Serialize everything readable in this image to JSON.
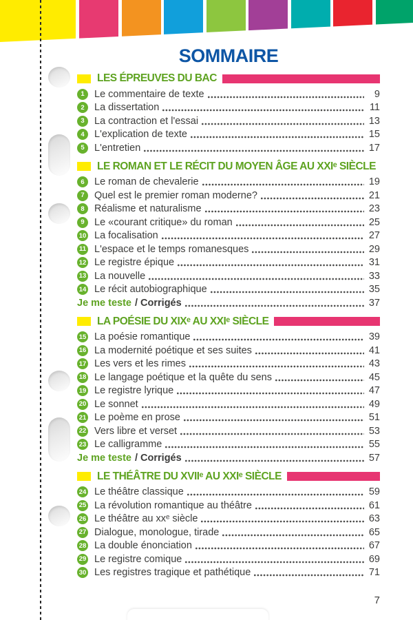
{
  "title": "SOMMAIRE",
  "folio": "7",
  "colors": {
    "title_blue": "#0e56a5",
    "heading_green": "#5ea321",
    "badge_green": "#68b22d",
    "bar_pink": "#e73571",
    "square_yellow": "#ffec00",
    "text": "#3c3c3b"
  },
  "stripe_colors": [
    "#ffec00",
    "#e73a71",
    "#f39320",
    "#119fdb",
    "#8dc63f",
    "#a23f97",
    "#00adae",
    "#e9242f",
    "#00a36a"
  ],
  "sections": [
    {
      "title": "LES ÉPREUVES DU BAC",
      "has_bar": true,
      "items": [
        {
          "num": "1",
          "label": "Le commentaire de texte",
          "page": "9"
        },
        {
          "num": "2",
          "label": "La dissertation",
          "page": "11"
        },
        {
          "num": "3",
          "label": "La contraction et l'essai",
          "page": "13"
        },
        {
          "num": "4",
          "label": "L'explication de texte",
          "page": "15"
        },
        {
          "num": "5",
          "label": "L'entretien",
          "page": "17"
        }
      ],
      "footer": null
    },
    {
      "title": "LE ROMAN ET LE RÉCIT DU MOYEN ÂGE AU XXIᵉ SIÈCLE",
      "has_bar": false,
      "items": [
        {
          "num": "6",
          "label": "Le roman de chevalerie",
          "page": "19"
        },
        {
          "num": "7",
          "label": "Quel est le premier roman moderne?",
          "page": "21"
        },
        {
          "num": "8",
          "label": "Réalisme et naturalisme",
          "page": "23"
        },
        {
          "num": "9",
          "label": "Le «courant critique» du roman",
          "page": "25"
        },
        {
          "num": "10",
          "label": "La focalisation",
          "page": "27"
        },
        {
          "num": "11",
          "label": "L'espace et le temps romanesques",
          "page": "29"
        },
        {
          "num": "12",
          "label": "Le registre épique",
          "page": "31"
        },
        {
          "num": "13",
          "label": "La nouvelle",
          "page": "33"
        },
        {
          "num": "14",
          "label": "Le récit autobiographique",
          "page": "35"
        }
      ],
      "footer": {
        "green_label": "Je me teste",
        "dark_label": "/ Corrigés",
        "page": "37"
      }
    },
    {
      "title": "LA POÉSIE DU XIXᵉ AU XXIᵉ SIÈCLE",
      "has_bar": true,
      "items": [
        {
          "num": "15",
          "label": "La poésie romantique",
          "page": "39"
        },
        {
          "num": "16",
          "label": "La modernité poétique et ses suites",
          "page": "41"
        },
        {
          "num": "17",
          "label": "Les vers et les rimes",
          "page": "43"
        },
        {
          "num": "18",
          "label": "Le langage poétique et la quête du sens",
          "page": "45"
        },
        {
          "num": "19",
          "label": "Le registre lyrique",
          "page": "47"
        },
        {
          "num": "20",
          "label": "Le sonnet",
          "page": "49"
        },
        {
          "num": "21",
          "label": "Le poème en prose",
          "page": "51"
        },
        {
          "num": "22",
          "label": "Vers libre et verset",
          "page": "53"
        },
        {
          "num": "23",
          "label": "Le calligramme",
          "page": "55"
        }
      ],
      "footer": {
        "green_label": "Je me teste",
        "dark_label": "/ Corrigés",
        "page": "57"
      }
    },
    {
      "title": "LE THÉÂTRE DU XVIIᵉ AU XXIᵉ SIÈCLE",
      "has_bar": true,
      "items": [
        {
          "num": "24",
          "label": "Le théâtre classique",
          "page": "59"
        },
        {
          "num": "25",
          "label": "La révolution romantique au théâtre",
          "page": "61"
        },
        {
          "num": "26",
          "label": "Le théâtre au xxᵉ siècle",
          "page": "63"
        },
        {
          "num": "27",
          "label": "Dialogue, monologue, tirade",
          "page": "65"
        },
        {
          "num": "28",
          "label": "La double énonciation",
          "page": "67"
        },
        {
          "num": "29",
          "label": "Le registre comique",
          "page": "69"
        },
        {
          "num": "30",
          "label": "Les registres tragique et pathétique",
          "page": "71"
        }
      ],
      "footer": null
    }
  ]
}
